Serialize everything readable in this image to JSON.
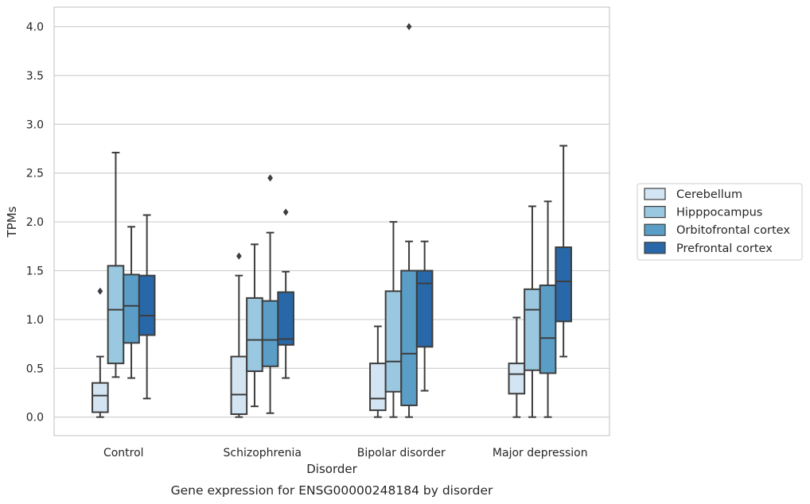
{
  "chart_data": {
    "type": "box",
    "xlabel": "Disorder",
    "ylabel": "TPMs",
    "caption": "Gene expression for ENSG00000248184 by disorder",
    "ylim": [
      -0.19,
      4.2
    ],
    "yticks": [
      "0.0",
      "0.5",
      "1.0",
      "1.5",
      "2.0",
      "2.5",
      "3.0",
      "3.5",
      "4.0"
    ],
    "grid": true,
    "legend_position": "right",
    "categories": [
      "Control",
      "Schizophrenia",
      "Bipolar disorder",
      "Major depression"
    ],
    "series": [
      {
        "name": "Cerebellum",
        "color": "#d3e4f3",
        "boxes": [
          {
            "whislo": 0.0,
            "q1": 0.05,
            "med": 0.22,
            "q3": 0.35,
            "whishi": 0.62,
            "fliers": [
              1.29
            ]
          },
          {
            "whislo": 0.0,
            "q1": 0.03,
            "med": 0.23,
            "q3": 0.62,
            "whishi": 1.45,
            "fliers": [
              1.65
            ]
          },
          {
            "whislo": 0.0,
            "q1": 0.07,
            "med": 0.19,
            "q3": 0.55,
            "whishi": 0.93,
            "fliers": []
          },
          {
            "whislo": 0.0,
            "q1": 0.24,
            "med": 0.44,
            "q3": 0.55,
            "whishi": 1.02,
            "fliers": []
          }
        ]
      },
      {
        "name": "Hipppocampus",
        "color": "#9ac8e0",
        "boxes": [
          {
            "whislo": 0.41,
            "q1": 0.55,
            "med": 1.1,
            "q3": 1.55,
            "whishi": 2.71,
            "fliers": []
          },
          {
            "whislo": 0.11,
            "q1": 0.47,
            "med": 0.79,
            "q3": 1.22,
            "whishi": 1.77,
            "fliers": []
          },
          {
            "whislo": 0.0,
            "q1": 0.26,
            "med": 0.57,
            "q3": 1.29,
            "whishi": 2.0,
            "fliers": []
          },
          {
            "whislo": 0.0,
            "q1": 0.48,
            "med": 1.1,
            "q3": 1.31,
            "whishi": 2.16,
            "fliers": []
          }
        ]
      },
      {
        "name": "Orbitofrontal cortex",
        "color": "#5a9ec8",
        "boxes": [
          {
            "whislo": 0.4,
            "q1": 0.76,
            "med": 1.14,
            "q3": 1.46,
            "whishi": 1.95,
            "fliers": []
          },
          {
            "whislo": 0.04,
            "q1": 0.52,
            "med": 0.79,
            "q3": 1.19,
            "whishi": 1.89,
            "fliers": [
              2.45
            ]
          },
          {
            "whislo": 0.0,
            "q1": 0.12,
            "med": 0.65,
            "q3": 1.5,
            "whishi": 1.8,
            "fliers": [
              4.0
            ]
          },
          {
            "whislo": 0.0,
            "q1": 0.45,
            "med": 0.81,
            "q3": 1.35,
            "whishi": 2.21,
            "fliers": []
          }
        ]
      },
      {
        "name": "Prefrontal cortex",
        "color": "#2868a8",
        "boxes": [
          {
            "whislo": 0.19,
            "q1": 0.84,
            "med": 1.04,
            "q3": 1.45,
            "whishi": 2.07,
            "fliers": []
          },
          {
            "whislo": 0.4,
            "q1": 0.74,
            "med": 0.8,
            "q3": 1.28,
            "whishi": 1.49,
            "fliers": [
              2.1
            ]
          },
          {
            "whislo": 0.27,
            "q1": 0.72,
            "med": 1.37,
            "q3": 1.5,
            "whishi": 1.8,
            "fliers": []
          },
          {
            "whislo": 0.62,
            "q1": 0.98,
            "med": 1.39,
            "q3": 1.74,
            "whishi": 2.78,
            "fliers": []
          }
        ]
      }
    ]
  }
}
